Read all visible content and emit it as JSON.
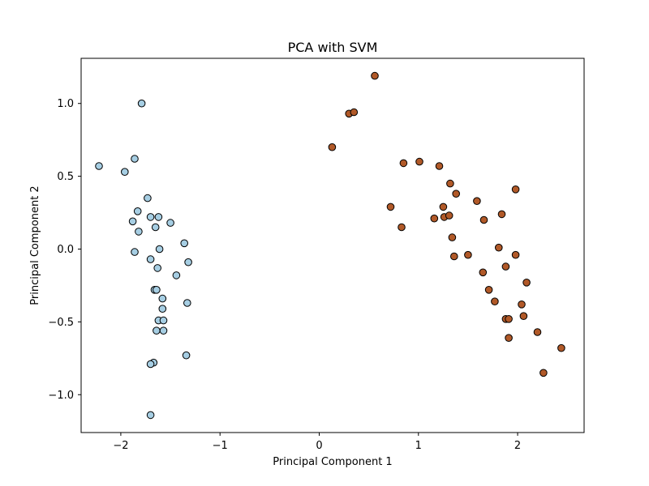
{
  "chart_data": {
    "type": "scatter",
    "title": "PCA with SVM",
    "xlabel": "Principal Component 1",
    "ylabel": "Principal Component 2",
    "xlim": [
      -2.4,
      2.67
    ],
    "ylim": [
      -1.26,
      1.31
    ],
    "xticks": [
      {
        "value": -2,
        "label": "−2"
      },
      {
        "value": -1,
        "label": "−1"
      },
      {
        "value": 0,
        "label": "0"
      },
      {
        "value": 1,
        "label": "1"
      },
      {
        "value": 2,
        "label": "2"
      }
    ],
    "yticks": [
      {
        "value": -1.0,
        "label": "−1.0"
      },
      {
        "value": -0.5,
        "label": "−0.5"
      },
      {
        "value": 0.0,
        "label": "0.0"
      },
      {
        "value": 0.5,
        "label": "0.5"
      },
      {
        "value": 1.0,
        "label": "1.0"
      }
    ],
    "grid": false,
    "series": [
      {
        "color": "#a6cee3",
        "points": [
          [
            -1.79,
            1.0
          ],
          [
            -2.22,
            0.57
          ],
          [
            -1.86,
            0.62
          ],
          [
            -1.96,
            0.53
          ],
          [
            -1.73,
            0.35
          ],
          [
            -1.83,
            0.26
          ],
          [
            -1.88,
            0.19
          ],
          [
            -1.7,
            0.22
          ],
          [
            -1.62,
            0.22
          ],
          [
            -1.5,
            0.18
          ],
          [
            -1.65,
            0.15
          ],
          [
            -1.82,
            0.12
          ],
          [
            -1.36,
            0.04
          ],
          [
            -1.86,
            -0.02
          ],
          [
            -1.61,
            0.0
          ],
          [
            -1.7,
            -0.07
          ],
          [
            -1.32,
            -0.09
          ],
          [
            -1.63,
            -0.13
          ],
          [
            -1.44,
            -0.18
          ],
          [
            -1.66,
            -0.28
          ],
          [
            -1.64,
            -0.28
          ],
          [
            -1.58,
            -0.34
          ],
          [
            -1.33,
            -0.37
          ],
          [
            -1.58,
            -0.41
          ],
          [
            -1.62,
            -0.49
          ],
          [
            -1.57,
            -0.49
          ],
          [
            -1.64,
            -0.56
          ],
          [
            -1.57,
            -0.56
          ],
          [
            -1.34,
            -0.73
          ],
          [
            -1.67,
            -0.78
          ],
          [
            -1.7,
            -0.79
          ],
          [
            -1.7,
            -1.14
          ]
        ]
      },
      {
        "color": "#b15928",
        "points": [
          [
            0.56,
            1.19
          ],
          [
            0.3,
            0.93
          ],
          [
            0.35,
            0.94
          ],
          [
            0.13,
            0.7
          ],
          [
            0.85,
            0.59
          ],
          [
            1.01,
            0.6
          ],
          [
            1.21,
            0.57
          ],
          [
            1.32,
            0.45
          ],
          [
            1.38,
            0.38
          ],
          [
            1.98,
            0.41
          ],
          [
            1.59,
            0.33
          ],
          [
            0.72,
            0.29
          ],
          [
            1.25,
            0.29
          ],
          [
            1.84,
            0.24
          ],
          [
            1.16,
            0.21
          ],
          [
            1.26,
            0.22
          ],
          [
            1.31,
            0.23
          ],
          [
            1.66,
            0.2
          ],
          [
            0.83,
            0.15
          ],
          [
            1.34,
            0.08
          ],
          [
            1.81,
            0.01
          ],
          [
            1.36,
            -0.05
          ],
          [
            1.5,
            -0.04
          ],
          [
            1.98,
            -0.04
          ],
          [
            1.88,
            -0.12
          ],
          [
            1.65,
            -0.16
          ],
          [
            2.09,
            -0.23
          ],
          [
            1.71,
            -0.28
          ],
          [
            1.77,
            -0.36
          ],
          [
            2.04,
            -0.38
          ],
          [
            2.06,
            -0.46
          ],
          [
            1.88,
            -0.48
          ],
          [
            1.91,
            -0.48
          ],
          [
            2.2,
            -0.57
          ],
          [
            1.91,
            -0.61
          ],
          [
            2.44,
            -0.68
          ],
          [
            2.26,
            -0.85
          ]
        ]
      }
    ]
  }
}
